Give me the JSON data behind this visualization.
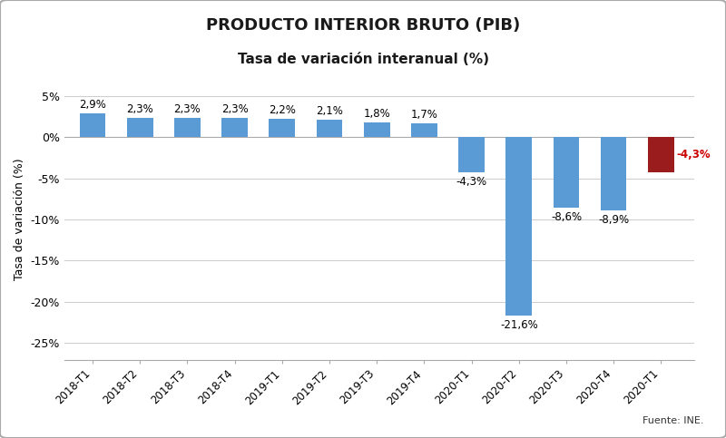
{
  "title_line1": "PRODUCTO INTERIOR BRUTO (PIB)",
  "title_line2": "Tasa de variación interanual (%)",
  "categories": [
    "2018-T1",
    "2018-T2",
    "2018-T3",
    "2018-T4",
    "2019-T1",
    "2019-T2",
    "2019-T3",
    "2019-T4",
    "2020-T1",
    "2020-T2",
    "2020-T3",
    "2020-T4",
    "2020-T1"
  ],
  "values": [
    2.9,
    2.3,
    2.3,
    2.3,
    2.2,
    2.1,
    1.8,
    1.7,
    -4.3,
    -21.6,
    -8.6,
    -8.9,
    -4.3
  ],
  "bar_colors": [
    "#5B9BD5",
    "#5B9BD5",
    "#5B9BD5",
    "#5B9BD5",
    "#5B9BD5",
    "#5B9BD5",
    "#5B9BD5",
    "#5B9BD5",
    "#5B9BD5",
    "#5B9BD5",
    "#5B9BD5",
    "#5B9BD5",
    "#9B1C1C"
  ],
  "labels": [
    "2,9%",
    "2,3%",
    "2,3%",
    "2,3%",
    "2,2%",
    "2,1%",
    "1,8%",
    "1,7%",
    "-4,3%",
    "-21,6%",
    "-8,6%",
    "-8,9%",
    "-4,3%"
  ],
  "ylabel": "Tasa de variación (%)",
  "ylim": [
    -27,
    7
  ],
  "yticks": [
    5,
    0,
    -5,
    -10,
    -15,
    -20,
    -25
  ],
  "ytick_labels": [
    "5%",
    "0%",
    "-5%",
    "-10%",
    "-15%",
    "-20%",
    "-25%"
  ],
  "source_text": "Fuente: INE.",
  "background_color": "#FFFFFF",
  "last_label_color": "#CC0000",
  "title1_fontsize": 13,
  "title2_fontsize": 11,
  "bar_width": 0.55
}
